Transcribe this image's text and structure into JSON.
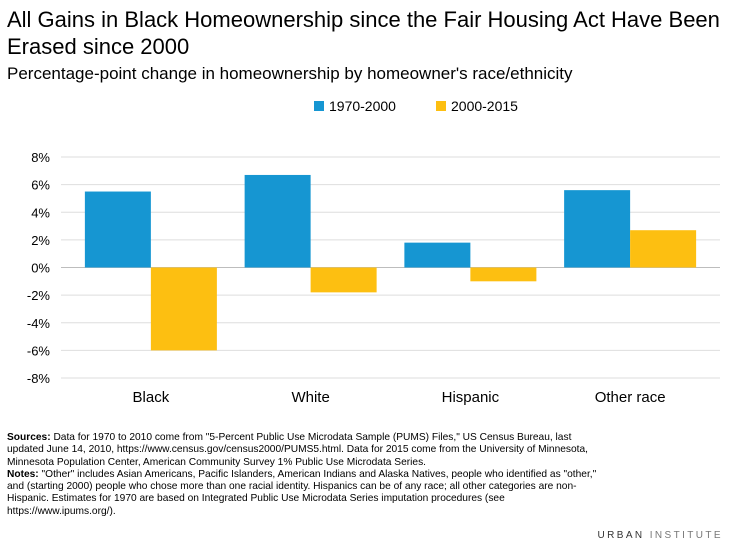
{
  "chart_data": {
    "type": "bar",
    "title": "All Gains in Black Homeownership since the Fair Housing Act Have Been Erased since 2000",
    "subtitle": "Percentage-point change in homeownership by homeowner's race/ethnicity",
    "categories": [
      "Black",
      "White",
      "Hispanic",
      "Other race"
    ],
    "series": [
      {
        "name": "1970-2000",
        "color": "#1696d2",
        "values": [
          5.5,
          6.7,
          1.8,
          5.6
        ]
      },
      {
        "name": "2000-2015",
        "color": "#fdbf11",
        "values": [
          -6.0,
          -1.8,
          -1.0,
          2.7
        ]
      }
    ],
    "ylim": [
      -8,
      8
    ],
    "yticks": [
      8,
      6,
      4,
      2,
      0,
      -2,
      -4,
      -6,
      -8
    ],
    "ytick_labels": [
      "8%",
      "6%",
      "4%",
      "2%",
      "0%",
      "-2%",
      "-4%",
      "-6%",
      "-8%"
    ],
    "grid": true,
    "legend_position": "top-center",
    "xlabel": "",
    "ylabel": ""
  },
  "notes": {
    "sources_label": "Sources:",
    "sources_text": " Data for 1970 to 2010 come from \"5-Percent Public Use Microdata Sample (PUMS) Files,\" US Census Bureau, last updated June 14, 2010, https://www.census.gov/census2000/PUMS5.html. Data for 2015 come from the University of Minnesota, Minnesota Population Center, American Community Survey 1% Public Use Microdata Series.",
    "notes_label": "Notes:",
    "notes_text": " \"Other\" includes Asian Americans, Pacific Islanders, American Indians and Alaska Natives, people who identified as \"other,\" and (starting 2000) people who chose more than one racial identity. Hispanics can be of any race; all other categories are non-Hispanic. Estimates for 1970 are based on Integrated Public Use Microdata Series imputation procedures (see https://www.ipums.org/)."
  },
  "branding": {
    "word1": "URBAN",
    "word2": "INSTITUTE"
  }
}
